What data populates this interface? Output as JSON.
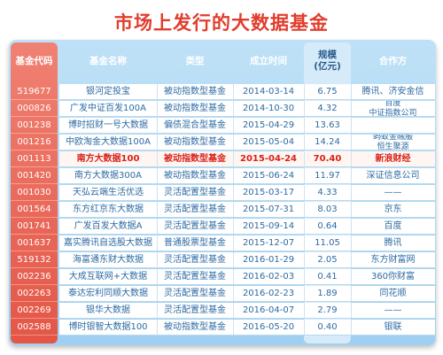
{
  "title": "市场上发行的大数据基金",
  "headers": {
    "code": "基金代码",
    "name": "基金名称",
    "type": "类型",
    "date": "成立时间",
    "scale_line1": "规模",
    "scale_line2": "(亿元)",
    "partner": "合作方"
  },
  "rows": [
    {
      "code": "519677",
      "name": "银河定投宝",
      "type": "被动指数型基金",
      "date": "2014-03-14",
      "scale": "6.75",
      "partner": "腾讯、济安金信",
      "partner2": ""
    },
    {
      "code": "000826",
      "name": "广发中证百发100A",
      "type": "被动指数型基金",
      "date": "2014-10-30",
      "scale": "4.32",
      "partner": "百度",
      "partner2": "中证指数公司"
    },
    {
      "code": "001238",
      "name": "博时招财一号大数据",
      "type": "偏债混合型基金",
      "date": "2015-04-29",
      "scale": "13.63",
      "partner": "",
      "partner2": ""
    },
    {
      "code": "001216",
      "name": "中欧淘金大数据100A",
      "type": "被动指数型基金",
      "date": "2015-05-04",
      "scale": "14.24",
      "partner": "蚂蚁金融服",
      "partner2": "恒生聚源"
    },
    {
      "code": "001113",
      "name": "南方大数据100",
      "type": "被动指数型基金",
      "date": "2015-04-24",
      "scale": "70.40",
      "partner": "新浪财经",
      "partner2": "",
      "highlight": true
    },
    {
      "code": "001420",
      "name": "南方大数据300A",
      "type": "被动指数型基金",
      "date": "2015-06-24",
      "scale": "11.97",
      "partner": "深证信息公司",
      "partner2": ""
    },
    {
      "code": "001030",
      "name": "天弘云端生活优选",
      "type": "灵活配置型基金",
      "date": "2015-03-17",
      "scale": "4.33",
      "partner": "——",
      "partner2": ""
    },
    {
      "code": "001564",
      "name": "东方红京东大数据",
      "type": "灵活配置型基金",
      "date": "2015-07-31",
      "scale": "8.03",
      "partner": "京东",
      "partner2": ""
    },
    {
      "code": "001741",
      "name": "广发百发大数据A",
      "type": "灵活配置型基金",
      "date": "2015-09-14",
      "scale": "0.64",
      "partner": "百度",
      "partner2": ""
    },
    {
      "code": "001637",
      "name": "嘉实腾讯自选股大数据",
      "type": "普通股票型基金",
      "date": "2015-12-07",
      "scale": "11.05",
      "partner": "腾讯",
      "partner2": ""
    },
    {
      "code": "519132",
      "name": "海富通东财大数据",
      "type": "灵活配置型基金",
      "date": "2016-01-29",
      "scale": "2.05",
      "partner": "东方财富网",
      "partner2": ""
    },
    {
      "code": "002236",
      "name": "大成互联网+大数据",
      "type": "灵活配置型基金",
      "date": "2016-02-03",
      "scale": "0.41",
      "partner": "360你财富",
      "partner2": ""
    },
    {
      "code": "002263",
      "name": "泰达宏利同顺大数据",
      "type": "灵活配置型基金",
      "date": "2016-02-23",
      "scale": "1.89",
      "partner": "同花顺",
      "partner2": ""
    },
    {
      "code": "002269",
      "name": "银华大数据",
      "type": "灵活配置型基金",
      "date": "2016-04-07",
      "scale": "2.79",
      "partner": "——",
      "partner2": ""
    },
    {
      "code": "002588",
      "name": "博时银智大数据100",
      "type": "被动指数型基金",
      "date": "2016-05-20",
      "scale": "0.40",
      "partner": "银联",
      "partner2": ""
    }
  ]
}
